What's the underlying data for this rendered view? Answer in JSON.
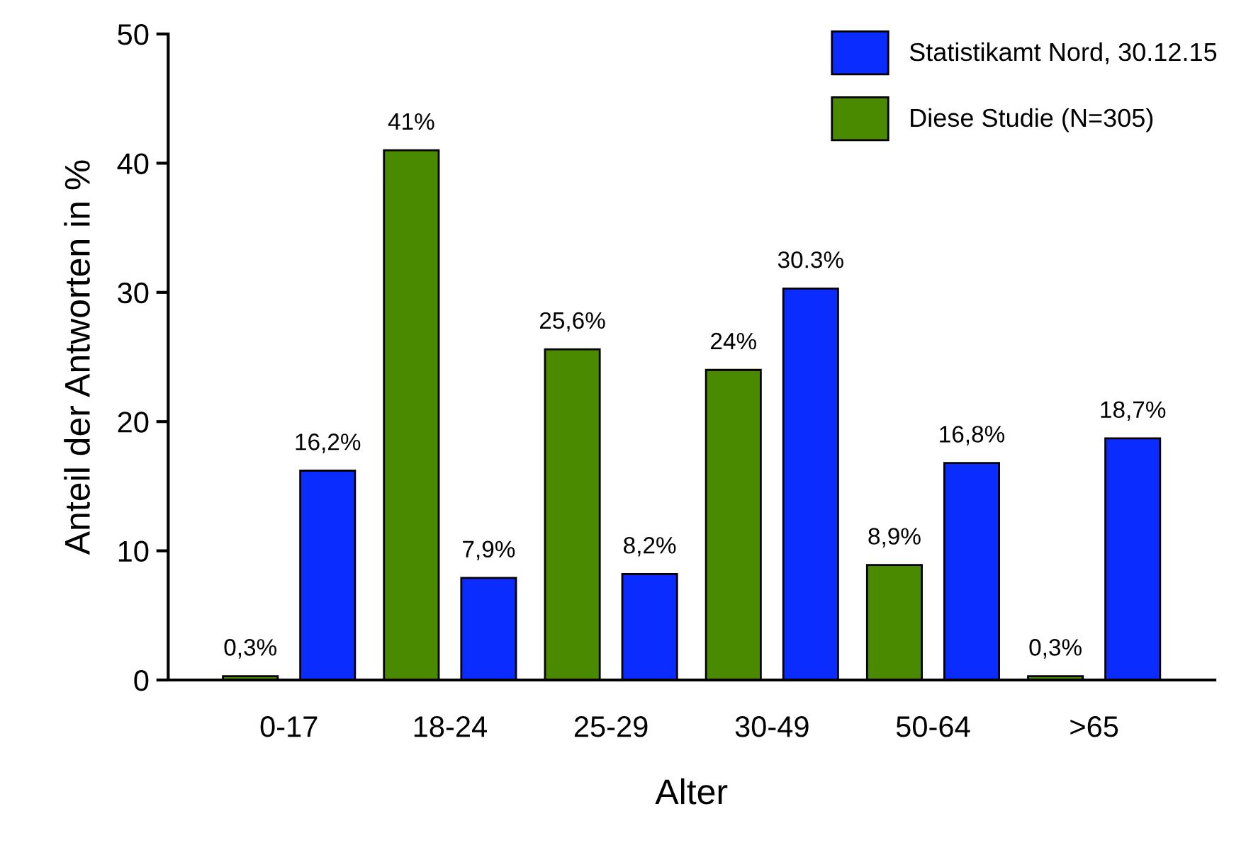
{
  "chart_data": {
    "type": "bar",
    "xlabel": "Alter",
    "ylabel": "Anteil der Antworten in %",
    "categories": [
      "0-17",
      "18-24",
      "25-29",
      "30-49",
      "50-64",
      ">65"
    ],
    "series": [
      {
        "name": "Diese Studie (N=305)",
        "color": "#4a8a00",
        "values": [
          0.3,
          41,
          25.6,
          24,
          8.9,
          0.3
        ],
        "value_labels": [
          "0,3%",
          "41%",
          "25,6%",
          "24%",
          "8,9%",
          "0,3%"
        ]
      },
      {
        "name": "Statistikamt Nord, 30.12.15",
        "color": "#0a2cff",
        "values": [
          16.2,
          7.9,
          8.2,
          30.3,
          16.8,
          18.7
        ],
        "value_labels": [
          "16,2%",
          "7,9%",
          "8,2%",
          "30.3%",
          "16,8%",
          "18,7%"
        ]
      }
    ],
    "ylim": [
      0,
      50
    ],
    "yticks": [
      0,
      10,
      20,
      30,
      40,
      50
    ],
    "grid": false,
    "legend": "top right"
  }
}
